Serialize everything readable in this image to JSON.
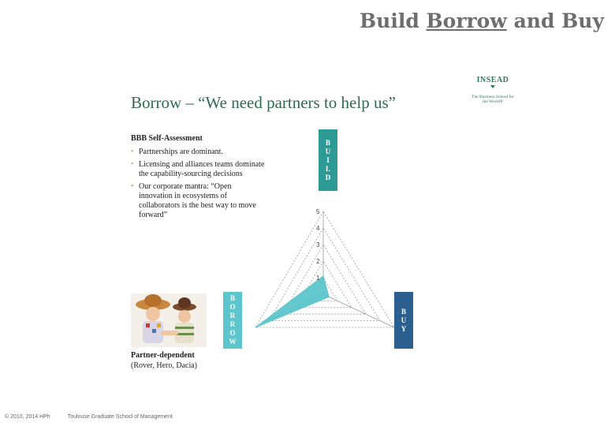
{
  "header": {
    "prefix": "Build",
    "underlined": "Borrow",
    "suffix": "and Buy"
  },
  "slide_title": "Borrow – “We need partners to help us”",
  "logo": {
    "name": "INSEAD",
    "tagline": "The Business School for the World®"
  },
  "assessment": {
    "heading": "BBB Self-Assessment",
    "bullets": [
      "Partnerships are dominant.",
      "Licensing and alliances teams dominate the capability-sourcing decisions",
      "Our corporate mantra: “Open innovation in ecosystems of collaborators is the best way to move forward”"
    ]
  },
  "axis_labels": {
    "build": [
      "B",
      "U",
      "I",
      "L",
      "D"
    ],
    "borrow": [
      "B",
      "O",
      "R",
      "R",
      "O",
      "W"
    ],
    "buy": [
      "B",
      "U",
      "Y"
    ]
  },
  "photo_caption": {
    "bold": "Partner-dependent",
    "normal": "(Rover, Hero, Dacia)"
  },
  "footer": {
    "copyright": "© 2010, 2014 HPh",
    "school": "Toulouse Graduate School of Management"
  },
  "colors": {
    "accent_teal": "#2e9a96",
    "fill": "#5cc6cc",
    "buy": "#2a5f8f",
    "title_green": "#2f6a52",
    "bullet": "#9cc070"
  },
  "chart_data": {
    "type": "radar",
    "axes": [
      "Build",
      "Borrow",
      "Buy"
    ],
    "tick_labels": [
      "1",
      "2",
      "3",
      "4",
      "5"
    ],
    "range": [
      0,
      5
    ],
    "series": [
      {
        "values": [
          1.1,
          5,
          0.4
        ],
        "color": "#5cc6cc"
      }
    ]
  }
}
